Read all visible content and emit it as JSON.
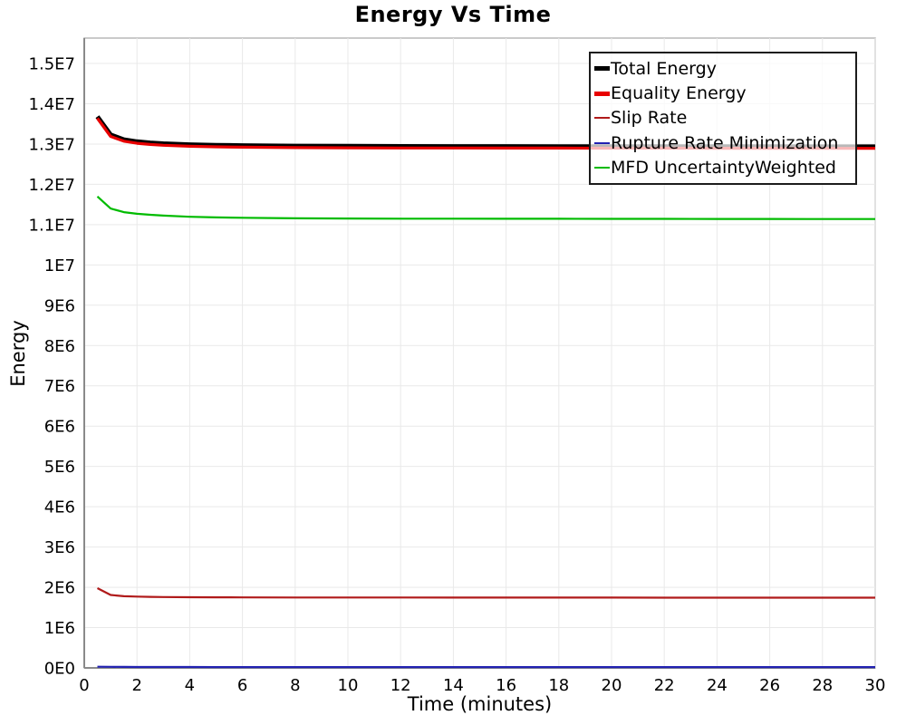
{
  "chart_data": {
    "type": "line",
    "title": "Energy Vs Time",
    "xlabel": "Time (minutes)",
    "ylabel": "Energy",
    "xlim": [
      0,
      30
    ],
    "ylim": [
      0,
      15630000
    ],
    "grid": true,
    "legend_position": "top-right",
    "x_ticks": [
      {
        "v": 0,
        "label": "0"
      },
      {
        "v": 2,
        "label": "2"
      },
      {
        "v": 4,
        "label": "4"
      },
      {
        "v": 6,
        "label": "6"
      },
      {
        "v": 8,
        "label": "8"
      },
      {
        "v": 10,
        "label": "10"
      },
      {
        "v": 12,
        "label": "12"
      },
      {
        "v": 14,
        "label": "14"
      },
      {
        "v": 16,
        "label": "16"
      },
      {
        "v": 18,
        "label": "18"
      },
      {
        "v": 20,
        "label": "20"
      },
      {
        "v": 22,
        "label": "22"
      },
      {
        "v": 24,
        "label": "24"
      },
      {
        "v": 26,
        "label": "26"
      },
      {
        "v": 28,
        "label": "28"
      },
      {
        "v": 30,
        "label": "30"
      }
    ],
    "y_ticks": [
      {
        "v": 0,
        "label": "0E0"
      },
      {
        "v": 1000000,
        "label": "1E6"
      },
      {
        "v": 2000000,
        "label": "2E6"
      },
      {
        "v": 3000000,
        "label": "3E6"
      },
      {
        "v": 4000000,
        "label": "4E6"
      },
      {
        "v": 5000000,
        "label": "5E6"
      },
      {
        "v": 6000000,
        "label": "6E6"
      },
      {
        "v": 7000000,
        "label": "7E6"
      },
      {
        "v": 8000000,
        "label": "8E6"
      },
      {
        "v": 9000000,
        "label": "9E6"
      },
      {
        "v": 10000000,
        "label": "1E7"
      },
      {
        "v": 11000000,
        "label": "1.1E7"
      },
      {
        "v": 12000000,
        "label": "1.2E7"
      },
      {
        "v": 13000000,
        "label": "1.3E7"
      },
      {
        "v": 14000000,
        "label": "1.4E7"
      },
      {
        "v": 15000000,
        "label": "1.5E7"
      }
    ],
    "x": [
      0.5,
      1,
      1.5,
      2,
      2.5,
      3,
      4,
      5,
      6,
      8,
      10,
      12,
      14,
      16,
      18,
      20,
      22,
      24,
      26,
      28,
      30
    ],
    "series": [
      {
        "name": "Total Energy",
        "color": "#000000",
        "width": 5,
        "values": [
          13680000,
          13230000,
          13110000,
          13060000,
          13030000,
          13010000,
          12985000,
          12972000,
          12963000,
          12952000,
          12946000,
          12943000,
          12941000,
          12940000,
          12939000,
          12938000,
          12937000,
          12936000,
          12935000,
          12934000,
          12933000
        ]
      },
      {
        "name": "Equality Energy",
        "color": "#e80000",
        "width": 3.2,
        "values": [
          13640000,
          13190000,
          13070000,
          13020000,
          12990000,
          12970000,
          12945000,
          12932000,
          12923000,
          12912000,
          12906000,
          12903000,
          12901000,
          12900000,
          12899000,
          12898000,
          12897000,
          12896000,
          12895000,
          12894000,
          12893000
        ]
      },
      {
        "name": "Slip Rate",
        "color": "#b01a1a",
        "width": 2.2,
        "values": [
          1980000,
          1810000,
          1780000,
          1770000,
          1763000,
          1758000,
          1754000,
          1752000,
          1750000,
          1748000,
          1747000,
          1746500,
          1746000,
          1745500,
          1745000,
          1744500,
          1744000,
          1743500,
          1743000,
          1742500,
          1742000
        ]
      },
      {
        "name": "Rupture Rate Minimization",
        "color": "#2222b2",
        "width": 2.2,
        "values": [
          30000,
          26000,
          24000,
          23000,
          22500,
          22000,
          21500,
          21000,
          21000,
          21000,
          21000,
          21000,
          21000,
          21000,
          21000,
          21000,
          21000,
          21000,
          21000,
          21000,
          21000
        ]
      },
      {
        "name": "MFD UncertaintyWeighted",
        "color": "#00bb00",
        "width": 2.2,
        "values": [
          11700000,
          11400000,
          11310000,
          11270000,
          11245000,
          11225000,
          11195000,
          11180000,
          11170000,
          11158000,
          11152000,
          11149000,
          11147000,
          11146000,
          11145000,
          11144000,
          11143000,
          11142000,
          11141000,
          11140000,
          11139000
        ]
      }
    ],
    "colors": {
      "background": "#ffffff",
      "grid": "#e9e9e9",
      "frame": "#b8b8b8",
      "axis": "#8a8a8a",
      "legend_border": "#1c1c1c",
      "text": "#000000"
    }
  }
}
